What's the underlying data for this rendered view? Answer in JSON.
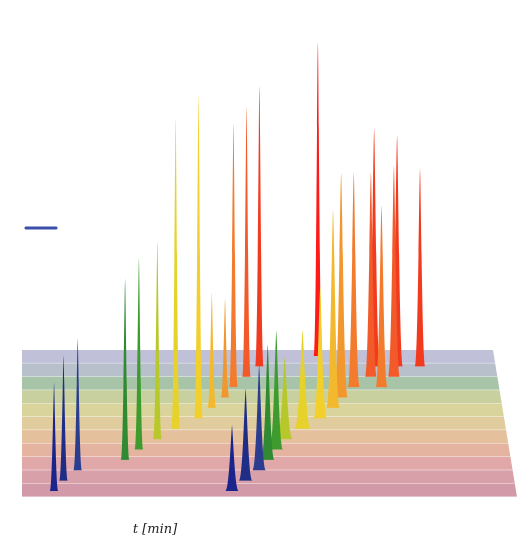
{
  "chart_data": {
    "type": "area",
    "style": "3d-waterfall-chromatogram",
    "title": "",
    "xlabel": "t [min]",
    "ylabel": "",
    "grid": true,
    "legend": {
      "placement": "left",
      "entries": [
        {
          "label": "",
          "color": "#3b4fa8"
        }
      ]
    },
    "traces": [
      {
        "color": "#ff1a1a",
        "peaks": [
          {
            "t": 0.63,
            "h": 0.95,
            "w": 0.006
          }
        ]
      },
      {
        "color": "#f23a1f",
        "peaks": [
          {
            "t": 0.5,
            "h": 0.85,
            "w": 0.006
          },
          {
            "t": 0.75,
            "h": 0.72,
            "w": 0.009
          },
          {
            "t": 0.8,
            "h": 0.7,
            "w": 0.009
          },
          {
            "t": 0.85,
            "h": 0.6,
            "w": 0.008
          }
        ]
      },
      {
        "color": "#f25a2a",
        "peaks": [
          {
            "t": 0.47,
            "h": 0.82,
            "w": 0.006
          },
          {
            "t": 0.74,
            "h": 0.62,
            "w": 0.009
          },
          {
            "t": 0.79,
            "h": 0.64,
            "w": 0.009
          }
        ]
      },
      {
        "color": "#f27b2e",
        "peaks": [
          {
            "t": 0.44,
            "h": 0.8,
            "w": 0.006
          },
          {
            "t": 0.7,
            "h": 0.65,
            "w": 0.009
          },
          {
            "t": 0.76,
            "h": 0.55,
            "w": 0.009
          }
        ]
      },
      {
        "color": "#f2962e",
        "peaks": [
          {
            "t": 0.42,
            "h": 0.3,
            "w": 0.006
          },
          {
            "t": 0.67,
            "h": 0.68,
            "w": 0.01
          }
        ]
      },
      {
        "color": "#f2b82e",
        "peaks": [
          {
            "t": 0.39,
            "h": 0.35,
            "w": 0.006
          },
          {
            "t": 0.65,
            "h": 0.6,
            "w": 0.01
          }
        ]
      },
      {
        "color": "#f2cf2a",
        "peaks": [
          {
            "t": 0.36,
            "h": 0.98,
            "w": 0.005
          },
          {
            "t": 0.62,
            "h": 0.4,
            "w": 0.01
          }
        ]
      },
      {
        "color": "#e6d22a",
        "peaks": [
          {
            "t": 0.31,
            "h": 0.94,
            "w": 0.005
          },
          {
            "t": 0.58,
            "h": 0.3,
            "w": 0.012
          }
        ]
      },
      {
        "color": "#b7c82a",
        "peaks": [
          {
            "t": 0.27,
            "h": 0.6,
            "w": 0.005
          },
          {
            "t": 0.54,
            "h": 0.25,
            "w": 0.012
          }
        ]
      },
      {
        "color": "#3e9c2f",
        "peaks": [
          {
            "t": 0.23,
            "h": 0.58,
            "w": 0.005
          },
          {
            "t": 0.52,
            "h": 0.36,
            "w": 0.01
          }
        ]
      },
      {
        "color": "#2f8a32",
        "peaks": [
          {
            "t": 0.2,
            "h": 0.55,
            "w": 0.005
          },
          {
            "t": 0.5,
            "h": 0.35,
            "w": 0.01
          }
        ]
      },
      {
        "color": "#2a3d8f",
        "peaks": [
          {
            "t": 0.1,
            "h": 0.4,
            "w": 0.004
          },
          {
            "t": 0.48,
            "h": 0.32,
            "w": 0.01
          }
        ]
      },
      {
        "color": "#1f2d86",
        "peaks": [
          {
            "t": 0.07,
            "h": 0.38,
            "w": 0.004
          },
          {
            "t": 0.45,
            "h": 0.28,
            "w": 0.01
          }
        ]
      },
      {
        "color": "#1a248a",
        "peaks": [
          {
            "t": 0.05,
            "h": 0.33,
            "w": 0.004
          },
          {
            "t": 0.42,
            "h": 0.2,
            "w": 0.01
          }
        ]
      }
    ],
    "baseline_band_colors": [
      "#c0c0d8",
      "#b8c0cc",
      "#a8c4a8",
      "#c8d0a0",
      "#d8d49c",
      "#e0cc9c",
      "#e4c09c",
      "#e4b4a0",
      "#e0a8a8",
      "#d8a0a8",
      "#d29aa8"
    ]
  }
}
